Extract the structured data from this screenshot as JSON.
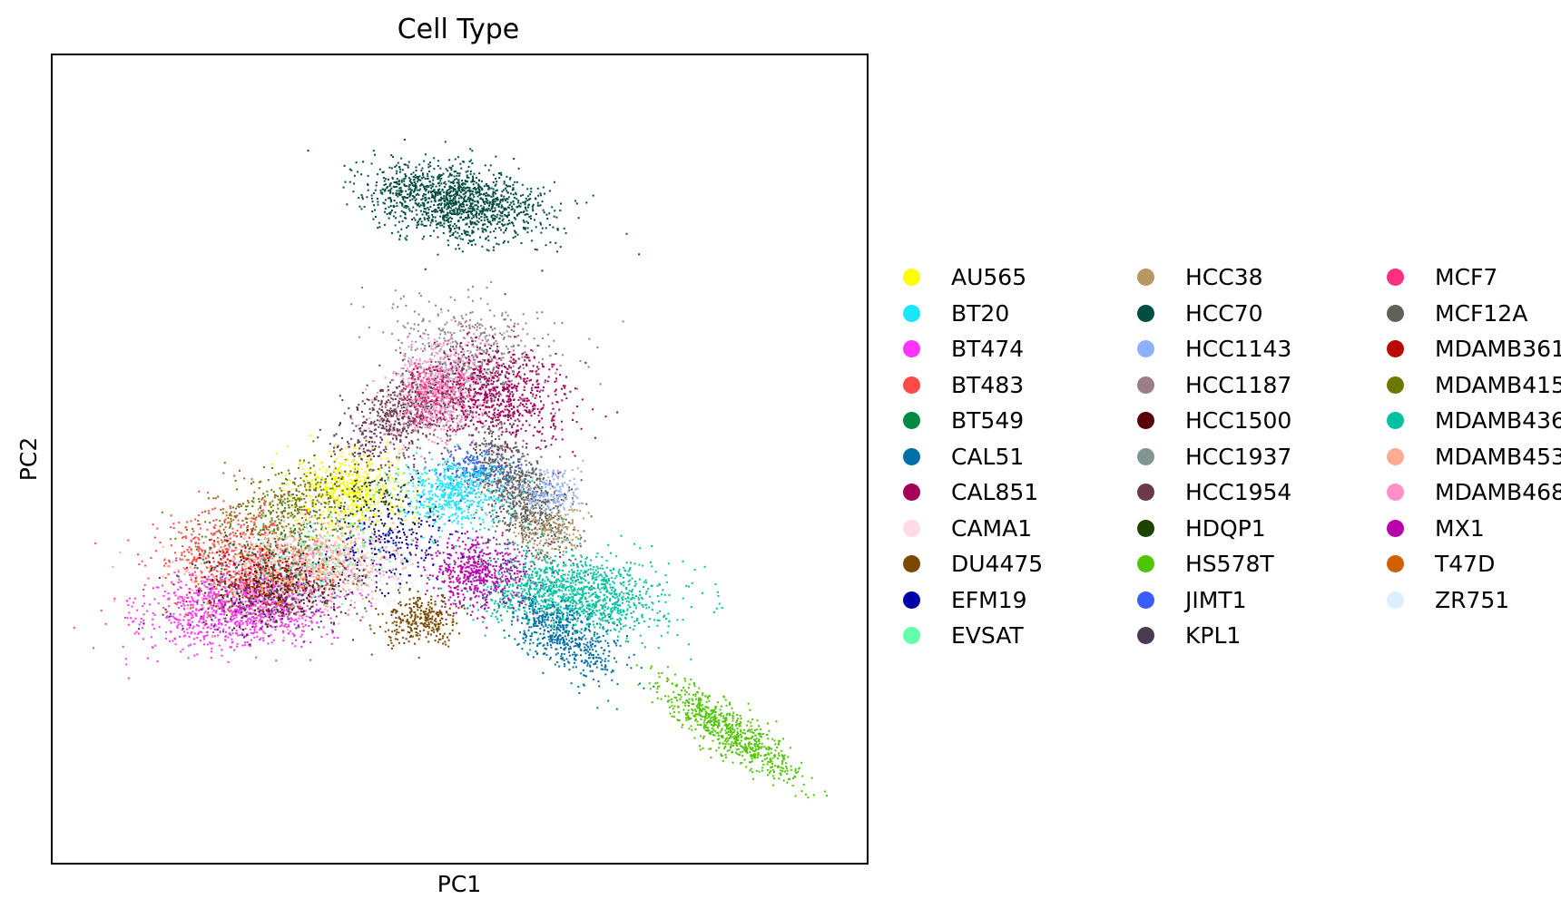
{
  "chart_data": {
    "type": "scatter",
    "title": "Cell Type",
    "xlabel": "PC1",
    "ylabel": "PC2",
    "xlim": [
      0,
      100
    ],
    "ylim": [
      0,
      100
    ],
    "ticks": "none",
    "grid": false,
    "legend_position": "right",
    "series": [
      {
        "name": "AU565",
        "color": "#ffff00"
      },
      {
        "name": "BT20",
        "color": "#1ce6ff"
      },
      {
        "name": "BT474",
        "color": "#ff34ff"
      },
      {
        "name": "BT483",
        "color": "#ff4a46"
      },
      {
        "name": "BT549",
        "color": "#008941"
      },
      {
        "name": "CAL51",
        "color": "#006fa6"
      },
      {
        "name": "CAL851",
        "color": "#a30059"
      },
      {
        "name": "CAMA1",
        "color": "#ffdbe5"
      },
      {
        "name": "DU4475",
        "color": "#7a4900"
      },
      {
        "name": "EFM19",
        "color": "#0000a6"
      },
      {
        "name": "EVSAT",
        "color": "#63ffac"
      },
      {
        "name": "HCC38",
        "color": "#b79762"
      },
      {
        "name": "HCC70",
        "color": "#004d43"
      },
      {
        "name": "HCC1143",
        "color": "#8fb0ff"
      },
      {
        "name": "HCC1187",
        "color": "#997d87"
      },
      {
        "name": "HCC1500",
        "color": "#5a0007"
      },
      {
        "name": "HCC1937",
        "color": "#809693"
      },
      {
        "name": "HCC1954",
        "color": "#6a3a4c"
      },
      {
        "name": "HDQP1",
        "color": "#1b4400"
      },
      {
        "name": "HS578T",
        "color": "#4fc601"
      },
      {
        "name": "JIMT1",
        "color": "#3b5dff"
      },
      {
        "name": "KPL1",
        "color": "#4a3b53"
      },
      {
        "name": "MCF7",
        "color": "#ff2f80"
      },
      {
        "name": "MCF12A",
        "color": "#61615a"
      },
      {
        "name": "MDAMB361",
        "color": "#ba0900"
      },
      {
        "name": "MDAMB415",
        "color": "#6b7900"
      },
      {
        "name": "MDAMB436",
        "color": "#00c2a0"
      },
      {
        "name": "MDAMB453",
        "color": "#ffaa92"
      },
      {
        "name": "MDAMB468",
        "color": "#ff90c9"
      },
      {
        "name": "MX1",
        "color": "#b903aa"
      },
      {
        "name": "T47D",
        "color": "#d16100"
      },
      {
        "name": "ZR751",
        "color": "#ddefff"
      }
    ],
    "clusters": [
      {
        "series": "HCC70",
        "cx": 49.5,
        "cy": 82,
        "sx": 2.2,
        "sy": 5.5,
        "rot": 82,
        "n": 1400
      },
      {
        "series": "HCC1187",
        "cx": 52,
        "cy": 65,
        "sx": 2.5,
        "sy": 6,
        "rot": 80,
        "n": 260
      },
      {
        "series": "HCC1954",
        "cx": 43.5,
        "cy": 56,
        "sx": 5,
        "sy": 2.3,
        "rot": 35,
        "n": 800
      },
      {
        "series": "MDAMB468",
        "cx": 47.5,
        "cy": 58.5,
        "sx": 3.5,
        "sy": 2.6,
        "rot": 40,
        "n": 700
      },
      {
        "series": "CAL851",
        "cx": 55,
        "cy": 58,
        "sx": 2.8,
        "sy": 4,
        "rot": 70,
        "n": 750
      },
      {
        "series": "MCF12A",
        "cx": 57,
        "cy": 46,
        "sx": 4.5,
        "sy": 2.2,
        "rot": -55,
        "n": 900
      },
      {
        "series": "HCC1143",
        "cx": 61,
        "cy": 46,
        "sx": 2,
        "sy": 1.8,
        "rot": 0,
        "n": 200
      },
      {
        "series": "JIMT1",
        "cx": 51.5,
        "cy": 49,
        "sx": 2.4,
        "sy": 1.4,
        "rot": 0,
        "n": 180
      },
      {
        "series": "BT20",
        "cx": 49,
        "cy": 46,
        "sx": 3.3,
        "sy": 2,
        "rot": 0,
        "n": 550
      },
      {
        "series": "HCC38",
        "cx": 61,
        "cy": 41,
        "sx": 2,
        "sy": 1.6,
        "rot": 0,
        "n": 160
      },
      {
        "series": "MDAMB436",
        "cx": 64,
        "cy": 33.5,
        "sx": 5.5,
        "sy": 2.4,
        "rot": -5,
        "n": 1250
      },
      {
        "series": "CAL51",
        "cx": 63,
        "cy": 28,
        "sx": 4,
        "sy": 1.8,
        "rot": -30,
        "n": 550
      },
      {
        "series": "MX1",
        "cx": 52,
        "cy": 36,
        "sx": 3,
        "sy": 2.2,
        "rot": -10,
        "n": 560
      },
      {
        "series": "DU4475",
        "cx": 45.5,
        "cy": 30,
        "sx": 2.4,
        "sy": 1.5,
        "rot": 10,
        "n": 300
      },
      {
        "series": "HS578T",
        "cx": 83,
        "cy": 16.5,
        "sx": 5,
        "sy": 1.3,
        "rot": -35,
        "n": 720
      },
      {
        "series": "AU565",
        "cx": 36.5,
        "cy": 46,
        "sx": 3.2,
        "sy": 2.4,
        "rot": 0,
        "n": 560
      },
      {
        "series": "MDAMB415",
        "cx": 29.5,
        "cy": 44,
        "sx": 5,
        "sy": 2.6,
        "rot": 15,
        "n": 500
      },
      {
        "series": "BT474",
        "cx": 23.5,
        "cy": 32,
        "sx": 6,
        "sy": 2.5,
        "rot": 8,
        "n": 1250
      },
      {
        "series": "MDAMB453",
        "cx": 29.5,
        "cy": 36.5,
        "sx": 6,
        "sy": 2.4,
        "rot": 8,
        "n": 1050
      },
      {
        "series": "BT483",
        "cx": 21.5,
        "cy": 39.5,
        "sx": 4.5,
        "sy": 3,
        "rot": 10,
        "n": 380
      },
      {
        "series": "KPL1",
        "cx": 28,
        "cy": 33.5,
        "sx": 6,
        "sy": 2.3,
        "rot": 8,
        "n": 450
      },
      {
        "series": "EFM19",
        "cx": 42,
        "cy": 40,
        "sx": 3.5,
        "sy": 2.6,
        "rot": 10,
        "n": 240
      },
      {
        "series": "CAMA1",
        "cx": 38,
        "cy": 37,
        "sx": 3.5,
        "sy": 2.4,
        "rot": 0,
        "n": 160
      },
      {
        "series": "ZR751",
        "cx": 30,
        "cy": 39,
        "sx": 6,
        "sy": 3,
        "rot": 0,
        "n": 120
      },
      {
        "series": "EVSAT",
        "cx": 33,
        "cy": 38.5,
        "sx": 4,
        "sy": 2.4,
        "rot": 0,
        "n": 120
      },
      {
        "series": "HCC1500",
        "cx": 27,
        "cy": 34,
        "sx": 4,
        "sy": 2.2,
        "rot": 5,
        "n": 150
      },
      {
        "series": "T47D",
        "cx": 27,
        "cy": 35,
        "sx": 4,
        "sy": 2.2,
        "rot": 5,
        "n": 140
      },
      {
        "series": "MDAMB361",
        "cx": 24,
        "cy": 36,
        "sx": 4,
        "sy": 2.6,
        "rot": 10,
        "n": 160
      },
      {
        "series": "BT549",
        "cx": 27,
        "cy": 38,
        "sx": 4,
        "sy": 2,
        "rot": 5,
        "n": 90
      },
      {
        "series": "HCC1937",
        "cx": 50,
        "cy": 62,
        "sx": 3,
        "sy": 4,
        "rot": 70,
        "n": 160
      },
      {
        "series": "MCF7",
        "cx": 46.5,
        "cy": 58,
        "sx": 2,
        "sy": 2,
        "rot": 0,
        "n": 120
      },
      {
        "series": "HDQP1",
        "cx": 40,
        "cy": 45,
        "sx": 3,
        "sy": 2,
        "rot": 0,
        "n": 80
      }
    ]
  }
}
